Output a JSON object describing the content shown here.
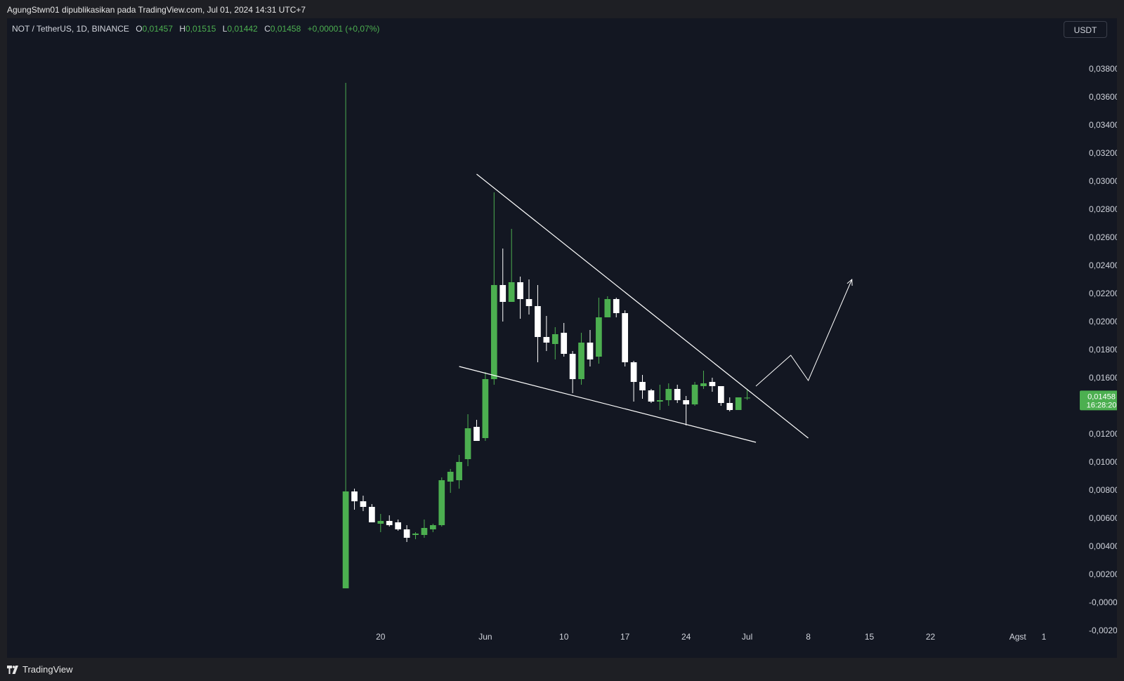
{
  "header": {
    "credit": "AgungStwn01 dipublikasikan pada TradingView.com, Jul 01, 2024 14:31 UTC+7"
  },
  "legend": {
    "symbol": "NOT / TetherUS, 1D, BINANCE",
    "o_label": "O",
    "o_value": "0,01457",
    "h_label": "H",
    "h_value": "0,01515",
    "l_label": "L",
    "l_value": "0,01442",
    "c_label": "C",
    "c_value": "0,01458",
    "change": "+0,00001 (+0,07%)"
  },
  "toolbar": {
    "currency": "USDT"
  },
  "price_tag": {
    "price": "0,01458",
    "countdown": "16:28:20"
  },
  "footer": {
    "brand": "TradingView",
    "brand_icon": "tradingview-logo-icon"
  },
  "colors": {
    "up": "#4caf50",
    "down": "#ffffff",
    "background": "#131722",
    "drawing": "#ffffff",
    "tag": "#4caf50"
  },
  "chart_data": {
    "type": "candlestick",
    "ylim": [
      -0.0024,
      0.0396
    ],
    "y_ticks": [
      "0,03800",
      "0,03600",
      "0,03400",
      "0,03200",
      "0,03000",
      "0,02800",
      "0,02600",
      "0,02400",
      "0,02200",
      "0,02000",
      "0,01800",
      "0,01600",
      "0,01200",
      "0,01000",
      "0,00800",
      "0,00600",
      "0,00400",
      "0,00200",
      "-0,00000",
      "-0,00200"
    ],
    "y_tick_values": [
      0.038,
      0.036,
      0.034,
      0.032,
      0.03,
      0.028,
      0.026,
      0.024,
      0.022,
      0.02,
      0.018,
      0.016,
      0.012,
      0.01,
      0.008,
      0.006,
      0.004,
      0.002,
      0.0,
      -0.002
    ],
    "x_range": [
      "2024-05-11",
      "2024-08-04"
    ],
    "x_ticks": [
      {
        "label": "20",
        "date": "2024-05-20"
      },
      {
        "label": "Jun",
        "date": "2024-06-01"
      },
      {
        "label": "10",
        "date": "2024-06-10"
      },
      {
        "label": "17",
        "date": "2024-06-17"
      },
      {
        "label": "24",
        "date": "2024-06-24"
      },
      {
        "label": "Jul",
        "date": "2024-07-01"
      },
      {
        "label": "8",
        "date": "2024-07-08"
      },
      {
        "label": "15",
        "date": "2024-07-15"
      },
      {
        "label": "22",
        "date": "2024-07-22"
      },
      {
        "label": "Agst",
        "date": "2024-08-01"
      },
      {
        "label": "1",
        "date": "2024-08-04"
      }
    ],
    "candles": [
      {
        "date": "2024-05-16",
        "o": 0.001,
        "h": 0.037,
        "l": 0.001,
        "c": 0.0079
      },
      {
        "date": "2024-05-17",
        "o": 0.0079,
        "h": 0.0081,
        "l": 0.0066,
        "c": 0.0072
      },
      {
        "date": "2024-05-18",
        "o": 0.0072,
        "h": 0.0076,
        "l": 0.0065,
        "c": 0.0068
      },
      {
        "date": "2024-05-19",
        "o": 0.0068,
        "h": 0.007,
        "l": 0.0057,
        "c": 0.0057
      },
      {
        "date": "2024-05-20",
        "o": 0.0056,
        "h": 0.0063,
        "l": 0.005,
        "c": 0.0058
      },
      {
        "date": "2024-05-21",
        "o": 0.0058,
        "h": 0.0062,
        "l": 0.0054,
        "c": 0.0055
      },
      {
        "date": "2024-05-22",
        "o": 0.0057,
        "h": 0.0059,
        "l": 0.0051,
        "c": 0.0052
      },
      {
        "date": "2024-05-23",
        "o": 0.0052,
        "h": 0.0055,
        "l": 0.0043,
        "c": 0.0046
      },
      {
        "date": "2024-05-24",
        "o": 0.0048,
        "h": 0.005,
        "l": 0.0045,
        "c": 0.0049
      },
      {
        "date": "2024-05-25",
        "o": 0.0048,
        "h": 0.0059,
        "l": 0.0046,
        "c": 0.0053
      },
      {
        "date": "2024-05-26",
        "o": 0.0052,
        "h": 0.0056,
        "l": 0.005,
        "c": 0.0055
      },
      {
        "date": "2024-05-27",
        "o": 0.0055,
        "h": 0.0089,
        "l": 0.0054,
        "c": 0.0087
      },
      {
        "date": "2024-05-28",
        "o": 0.0086,
        "h": 0.0095,
        "l": 0.0078,
        "c": 0.0093
      },
      {
        "date": "2024-05-29",
        "o": 0.0087,
        "h": 0.0105,
        "l": 0.0081,
        "c": 0.01
      },
      {
        "date": "2024-05-30",
        "o": 0.0102,
        "h": 0.0134,
        "l": 0.0097,
        "c": 0.0124
      },
      {
        "date": "2024-05-31",
        "o": 0.0125,
        "h": 0.013,
        "l": 0.0115,
        "c": 0.0115
      },
      {
        "date": "2024-06-01",
        "o": 0.0117,
        "h": 0.0164,
        "l": 0.0115,
        "c": 0.0159
      },
      {
        "date": "2024-06-02",
        "o": 0.0159,
        "h": 0.0292,
        "l": 0.0155,
        "c": 0.0226
      },
      {
        "date": "2024-06-03",
        "o": 0.0226,
        "h": 0.0252,
        "l": 0.02,
        "c": 0.0214
      },
      {
        "date": "2024-06-04",
        "o": 0.0214,
        "h": 0.0266,
        "l": 0.0214,
        "c": 0.0228
      },
      {
        "date": "2024-06-05",
        "o": 0.0228,
        "h": 0.0232,
        "l": 0.0202,
        "c": 0.0216
      },
      {
        "date": "2024-06-06",
        "o": 0.0216,
        "h": 0.023,
        "l": 0.0205,
        "c": 0.0211
      },
      {
        "date": "2024-06-07",
        "o": 0.0211,
        "h": 0.0226,
        "l": 0.0171,
        "c": 0.0189
      },
      {
        "date": "2024-06-08",
        "o": 0.0189,
        "h": 0.0204,
        "l": 0.0179,
        "c": 0.0185
      },
      {
        "date": "2024-06-09",
        "o": 0.0184,
        "h": 0.0196,
        "l": 0.0173,
        "c": 0.0191
      },
      {
        "date": "2024-06-10",
        "o": 0.0192,
        "h": 0.0199,
        "l": 0.0175,
        "c": 0.0177
      },
      {
        "date": "2024-06-11",
        "o": 0.0177,
        "h": 0.0179,
        "l": 0.0149,
        "c": 0.0159
      },
      {
        "date": "2024-06-12",
        "o": 0.0159,
        "h": 0.0192,
        "l": 0.0155,
        "c": 0.0185
      },
      {
        "date": "2024-06-13",
        "o": 0.0185,
        "h": 0.0194,
        "l": 0.0168,
        "c": 0.0173
      },
      {
        "date": "2024-06-14",
        "o": 0.0175,
        "h": 0.0217,
        "l": 0.017,
        "c": 0.0203
      },
      {
        "date": "2024-06-15",
        "o": 0.0203,
        "h": 0.0218,
        "l": 0.0203,
        "c": 0.0216
      },
      {
        "date": "2024-06-16",
        "o": 0.0216,
        "h": 0.0217,
        "l": 0.0203,
        "c": 0.0206
      },
      {
        "date": "2024-06-17",
        "o": 0.0206,
        "h": 0.0208,
        "l": 0.0168,
        "c": 0.0171
      },
      {
        "date": "2024-06-18",
        "o": 0.0171,
        "h": 0.0172,
        "l": 0.0143,
        "c": 0.0157
      },
      {
        "date": "2024-06-19",
        "o": 0.0157,
        "h": 0.0162,
        "l": 0.0145,
        "c": 0.0151
      },
      {
        "date": "2024-06-20",
        "o": 0.0151,
        "h": 0.0152,
        "l": 0.0142,
        "c": 0.0143
      },
      {
        "date": "2024-06-21",
        "o": 0.0143,
        "h": 0.0155,
        "l": 0.0137,
        "c": 0.0144
      },
      {
        "date": "2024-06-22",
        "o": 0.0144,
        "h": 0.0156,
        "l": 0.014,
        "c": 0.0152
      },
      {
        "date": "2024-06-23",
        "o": 0.0152,
        "h": 0.0155,
        "l": 0.0142,
        "c": 0.0144
      },
      {
        "date": "2024-06-24",
        "o": 0.0144,
        "h": 0.0147,
        "l": 0.0126,
        "c": 0.0141
      },
      {
        "date": "2024-06-25",
        "o": 0.0141,
        "h": 0.0157,
        "l": 0.014,
        "c": 0.0155
      },
      {
        "date": "2024-06-26",
        "o": 0.0154,
        "h": 0.0165,
        "l": 0.0152,
        "c": 0.0156
      },
      {
        "date": "2024-06-27",
        "o": 0.0157,
        "h": 0.016,
        "l": 0.015,
        "c": 0.0154
      },
      {
        "date": "2024-06-28",
        "o": 0.0154,
        "h": 0.0154,
        "l": 0.014,
        "c": 0.0142
      },
      {
        "date": "2024-06-29",
        "o": 0.0142,
        "h": 0.0146,
        "l": 0.0136,
        "c": 0.0137
      },
      {
        "date": "2024-06-30",
        "o": 0.0137,
        "h": 0.0146,
        "l": 0.0137,
        "c": 0.0146
      },
      {
        "date": "2024-07-01",
        "o": 0.01457,
        "h": 0.01515,
        "l": 0.01442,
        "c": 0.01458
      }
    ],
    "drawings": [
      {
        "kind": "trendline",
        "from": {
          "date": "2024-05-31",
          "y": 0.0305
        },
        "to": {
          "date": "2024-07-08",
          "y": 0.0117
        }
      },
      {
        "kind": "trendline",
        "from": {
          "date": "2024-05-29",
          "y": 0.0168
        },
        "to": {
          "date": "2024-07-02",
          "y": 0.0114
        }
      },
      {
        "kind": "path-arrow",
        "points": [
          {
            "date": "2024-07-02",
            "y": 0.0154
          },
          {
            "date": "2024-07-06",
            "y": 0.0176
          },
          {
            "date": "2024-07-08",
            "y": 0.0158
          },
          {
            "date": "2024-07-13",
            "y": 0.023
          }
        ]
      }
    ]
  }
}
